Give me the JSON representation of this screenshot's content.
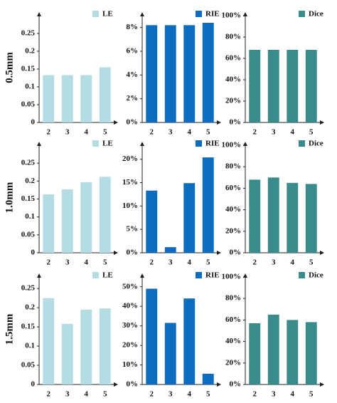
{
  "row_labels": [
    "0.5mm",
    "1.0mm",
    "1.5mm"
  ],
  "chart_data": [
    {
      "type": "bar",
      "categories": [
        "2",
        "3",
        "4",
        "5"
      ],
      "series": [
        {
          "name": "LE",
          "color": "#b3dde3",
          "values": [
            0.133,
            0.133,
            0.133,
            0.155
          ]
        }
      ],
      "ylim": [
        0,
        0.3
      ],
      "yticks": [
        0,
        0.05,
        0.1,
        0.15,
        0.2,
        0.25
      ]
    },
    {
      "type": "bar",
      "categories": [
        "2",
        "3",
        "4",
        "5"
      ],
      "series": [
        {
          "name": "RIE",
          "color": "#0b6cc0",
          "values": [
            8.2,
            8.2,
            8.2,
            8.4
          ]
        }
      ],
      "ylim": [
        0,
        9
      ],
      "yticks": [
        {
          "value": 0,
          "label": "0%"
        },
        {
          "value": 2,
          "label": "2%"
        },
        {
          "value": 4,
          "label": "4%"
        },
        {
          "value": 6,
          "label": "6%"
        },
        {
          "value": 8,
          "label": "8%"
        }
      ]
    },
    {
      "type": "bar",
      "categories": [
        "2",
        "3",
        "4",
        "5"
      ],
      "series": [
        {
          "name": "Dice",
          "color": "#3a8c8c",
          "values": [
            68,
            68,
            68,
            68
          ]
        }
      ],
      "ylim": [
        0,
        100
      ],
      "yticks": [
        {
          "value": 0,
          "label": "0%"
        },
        {
          "value": 20,
          "label": "20%"
        },
        {
          "value": 40,
          "label": "40%"
        },
        {
          "value": 60,
          "label": "60%"
        },
        {
          "value": 80,
          "label": "80%"
        },
        {
          "value": 100,
          "label": "100%"
        }
      ]
    },
    {
      "type": "bar",
      "categories": [
        "2",
        "3",
        "4",
        "5"
      ],
      "series": [
        {
          "name": "LE",
          "color": "#b3dde3",
          "values": [
            0.163,
            0.177,
            0.197,
            0.212
          ]
        }
      ],
      "ylim": [
        0,
        0.3
      ],
      "yticks": [
        0,
        0.05,
        0.1,
        0.15,
        0.2,
        0.25
      ]
    },
    {
      "type": "bar",
      "categories": [
        "2",
        "3",
        "4",
        "5"
      ],
      "series": [
        {
          "name": "RIE",
          "color": "#0b6cc0",
          "values": [
            13.3,
            1.2,
            14.9,
            20.4
          ]
        }
      ],
      "ylim": [
        0,
        23
      ],
      "yticks": [
        {
          "value": 0,
          "label": "0%"
        },
        {
          "value": 5,
          "label": "5%"
        },
        {
          "value": 10,
          "label": "10%"
        },
        {
          "value": 15,
          "label": "15%"
        },
        {
          "value": 20,
          "label": "20%"
        }
      ]
    },
    {
      "type": "bar",
      "categories": [
        "2",
        "3",
        "4",
        "5"
      ],
      "series": [
        {
          "name": "Dice",
          "color": "#3a8c8c",
          "values": [
            68,
            70,
            65,
            64
          ]
        }
      ],
      "ylim": [
        0,
        100
      ],
      "yticks": [
        {
          "value": 0,
          "label": "0%"
        },
        {
          "value": 20,
          "label": "20%"
        },
        {
          "value": 40,
          "label": "40%"
        },
        {
          "value": 60,
          "label": "60%"
        },
        {
          "value": 80,
          "label": "80%"
        },
        {
          "value": 100,
          "label": "100%"
        }
      ]
    },
    {
      "type": "bar",
      "categories": [
        "2",
        "3",
        "4",
        "5"
      ],
      "series": [
        {
          "name": "LE",
          "color": "#b3dde3",
          "values": [
            0.225,
            0.158,
            0.195,
            0.198
          ]
        }
      ],
      "ylim": [
        0,
        0.28
      ],
      "yticks": [
        0,
        0.05,
        0.1,
        0.15,
        0.2,
        0.25
      ]
    },
    {
      "type": "bar",
      "categories": [
        "2",
        "3",
        "4",
        "5"
      ],
      "series": [
        {
          "name": "RIE",
          "color": "#0b6cc0",
          "values": [
            49,
            31.5,
            44,
            5.5
          ]
        }
      ],
      "ylim": [
        0,
        55
      ],
      "yticks": [
        {
          "value": 0,
          "label": "0%"
        },
        {
          "value": 10,
          "label": "10%"
        },
        {
          "value": 20,
          "label": "20%"
        },
        {
          "value": 30,
          "label": "30%"
        },
        {
          "value": 40,
          "label": "40%"
        },
        {
          "value": 50,
          "label": "50%"
        }
      ]
    },
    {
      "type": "bar",
      "categories": [
        "2",
        "3",
        "4",
        "5"
      ],
      "series": [
        {
          "name": "Dice",
          "color": "#3a8c8c",
          "values": [
            57,
            65,
            60,
            58
          ]
        }
      ],
      "ylim": [
        0,
        100
      ],
      "yticks": [
        {
          "value": 0,
          "label": "0%"
        },
        {
          "value": 20,
          "label": "20%"
        },
        {
          "value": 40,
          "label": "40%"
        },
        {
          "value": 60,
          "label": "60%"
        },
        {
          "value": 80,
          "label": "80%"
        },
        {
          "value": 100,
          "label": "100%"
        }
      ]
    }
  ]
}
